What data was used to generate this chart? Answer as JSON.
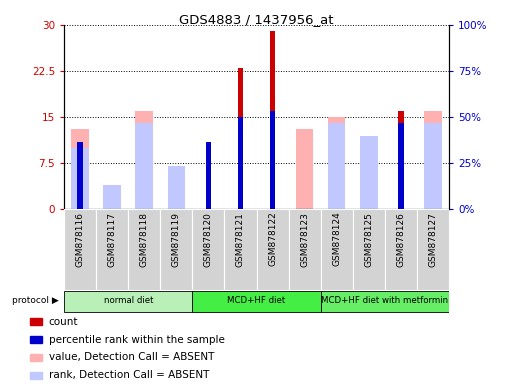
{
  "title": "GDS4883 / 1437956_at",
  "samples": [
    "GSM878116",
    "GSM878117",
    "GSM878118",
    "GSM878119",
    "GSM878120",
    "GSM878121",
    "GSM878122",
    "GSM878123",
    "GSM878124",
    "GSM878125",
    "GSM878126",
    "GSM878127"
  ],
  "count": [
    0,
    0,
    0,
    0,
    10,
    23,
    29,
    0,
    0,
    0,
    16,
    0
  ],
  "percentile": [
    11,
    0,
    0,
    0,
    11,
    15,
    16,
    0,
    0,
    0,
    14,
    0
  ],
  "value_absent": [
    13,
    1,
    16,
    5,
    0,
    0,
    0,
    13,
    15,
    12,
    0,
    16
  ],
  "rank_absent": [
    10,
    4,
    14,
    7,
    0,
    0,
    0,
    0,
    14,
    12,
    0,
    14
  ],
  "protocols": [
    {
      "label": "normal diet",
      "start": 0,
      "end": 4,
      "color": "#b8f0b8"
    },
    {
      "label": "MCD+HF diet",
      "start": 4,
      "end": 8,
      "color": "#44ee44"
    },
    {
      "label": "MCD+HF diet with metformin",
      "start": 8,
      "end": 12,
      "color": "#66ee66"
    }
  ],
  "ylim_left": [
    0,
    30
  ],
  "ylim_right": [
    0,
    100
  ],
  "yticks_left": [
    0,
    7.5,
    15,
    22.5,
    30
  ],
  "yticks_right": [
    0,
    25,
    50,
    75,
    100
  ],
  "ytick_labels_left": [
    "0",
    "7.5",
    "15",
    "22.5",
    "30"
  ],
  "ytick_labels_right": [
    "0%",
    "25%",
    "50%",
    "75%",
    "100%"
  ],
  "count_color": "#cc0000",
  "percentile_color": "#0000cc",
  "value_absent_color": "#ffb0b0",
  "rank_absent_color": "#c0c8ff",
  "wide_bar_width": 0.55,
  "narrow_bar_width": 0.18
}
